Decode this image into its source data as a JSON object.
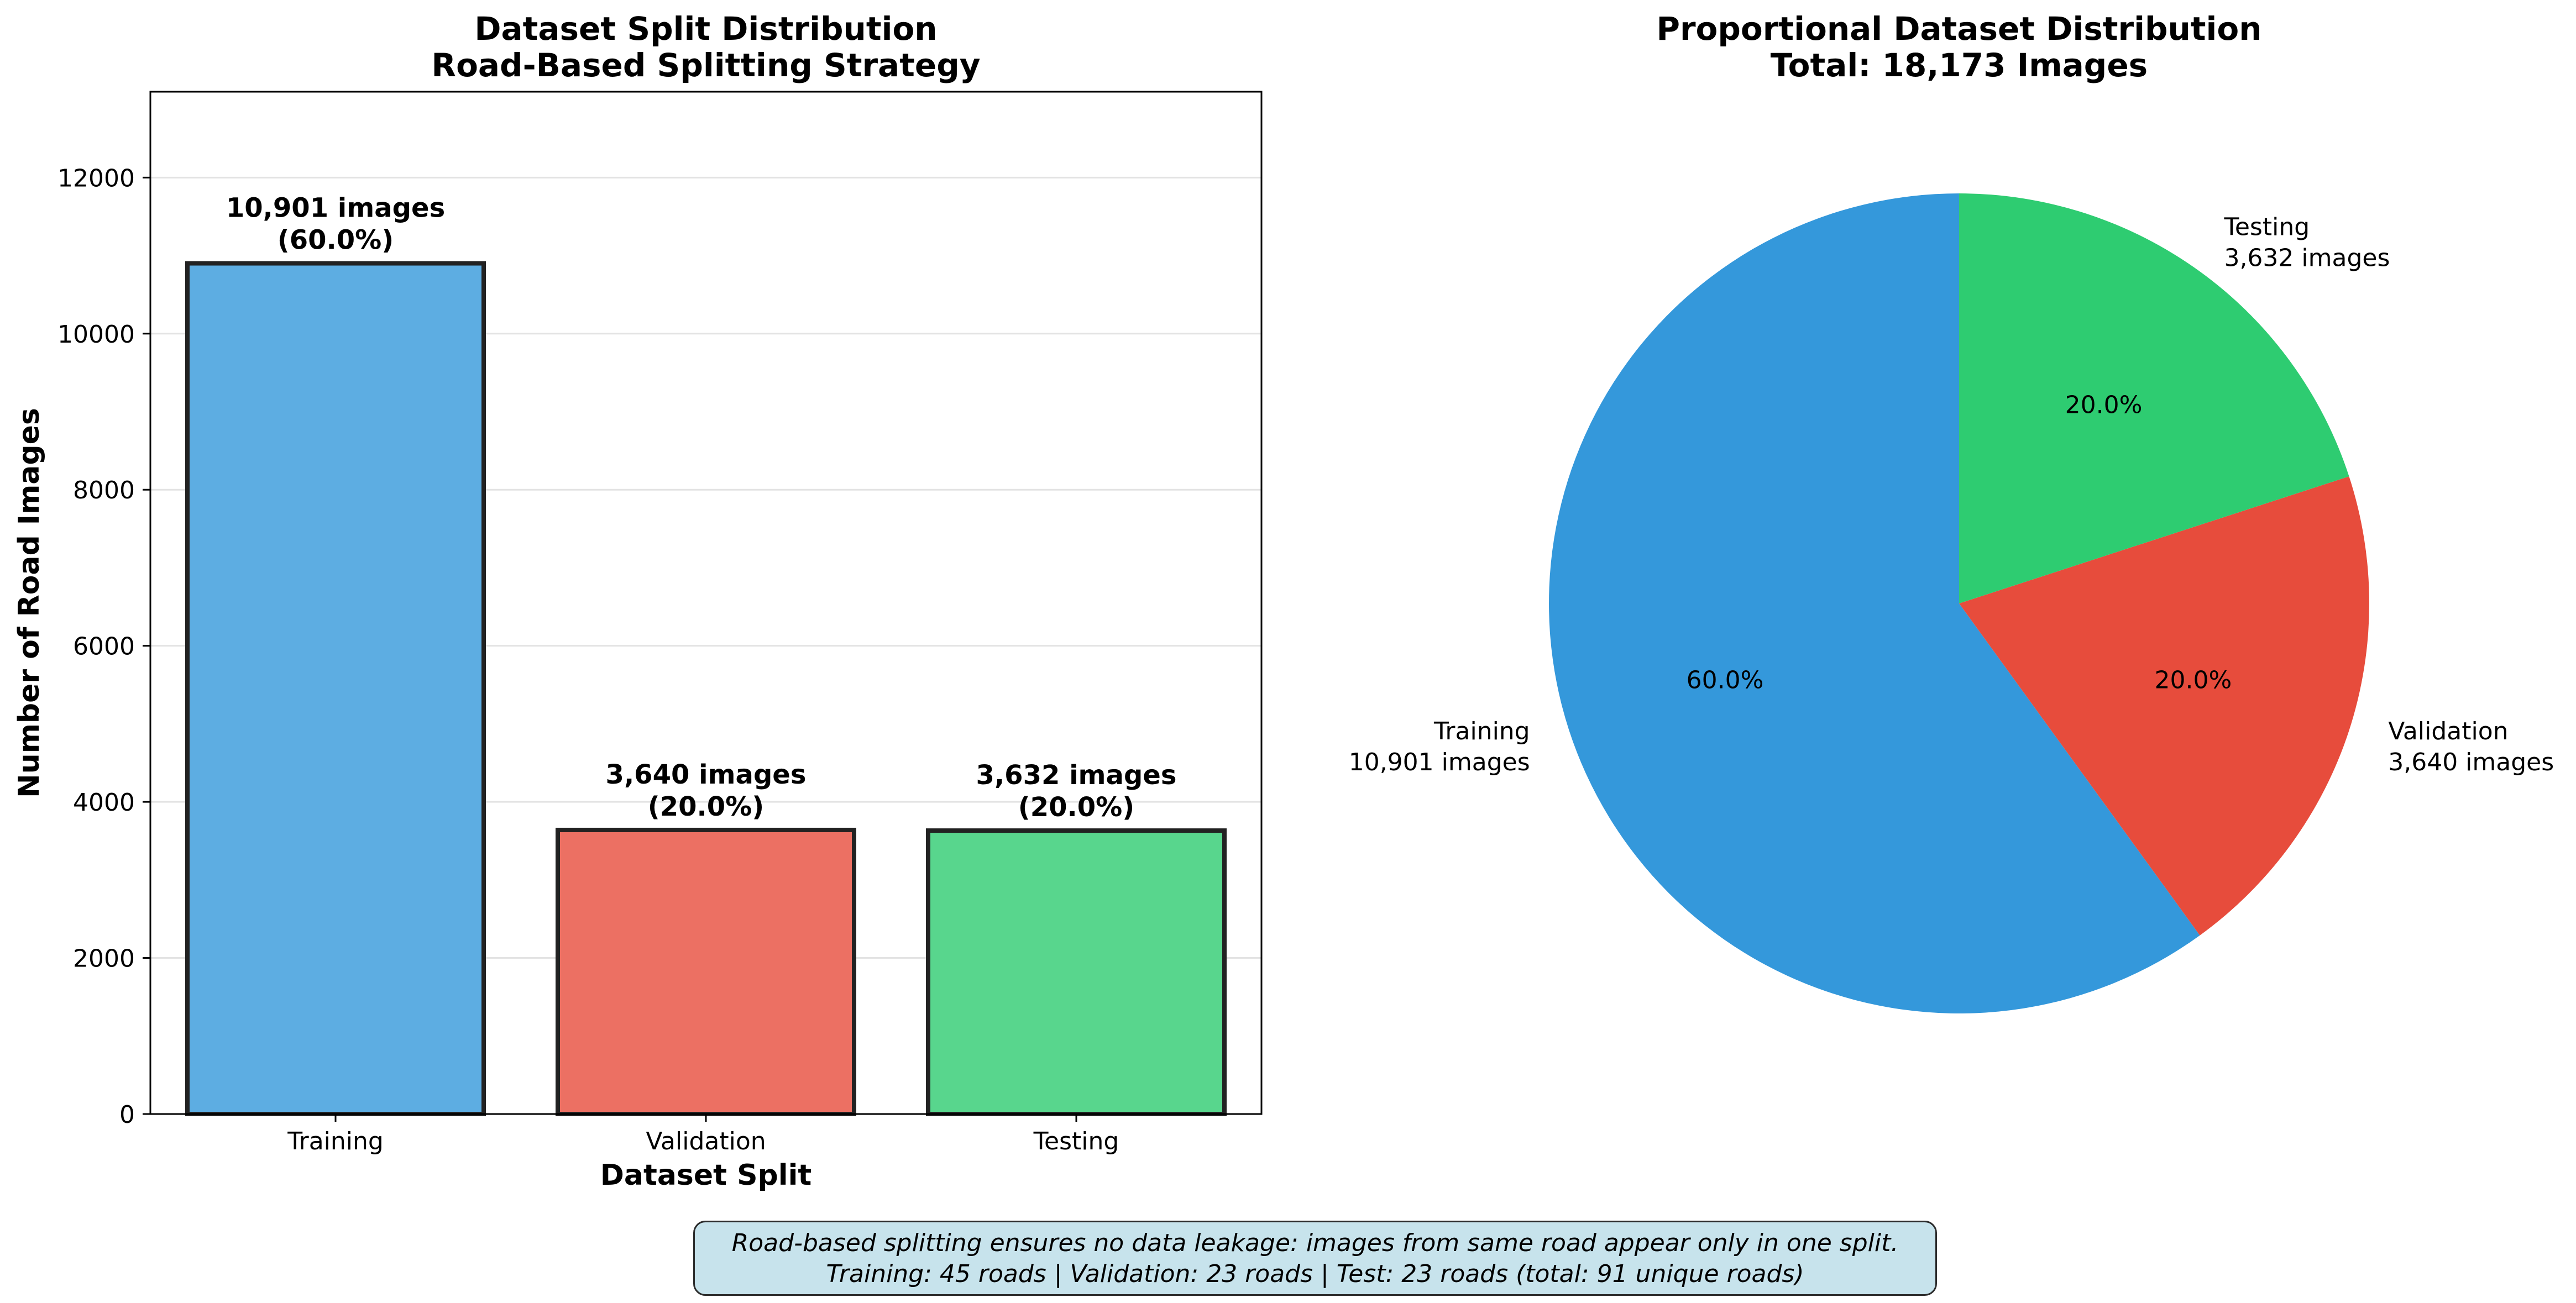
{
  "chart_data": [
    {
      "type": "bar",
      "title": [
        "Dataset Split Distribution",
        "Road-Based Splitting Strategy"
      ],
      "xlabel": "Dataset Split",
      "ylabel": "Number of Road Images",
      "categories": [
        "Training",
        "Validation",
        "Testing"
      ],
      "values": [
        10901,
        3640,
        3632
      ],
      "colors": [
        "#5dade2",
        "#ec7063",
        "#58d68d"
      ],
      "data_labels": [
        [
          "10,901 images",
          "(60.0%)"
        ],
        [
          "3,640 images",
          "(20.0%)"
        ],
        [
          "3,632 images",
          "(20.0%)"
        ]
      ],
      "ylim": [
        0,
        13100
      ],
      "yticks": [
        0,
        2000,
        4000,
        6000,
        8000,
        10000,
        12000
      ],
      "grid": true
    },
    {
      "type": "pie",
      "title": [
        "Proportional Dataset Distribution",
        "Total: 18,173 Images"
      ],
      "slices": [
        {
          "label": [
            "Training",
            "10,901 images"
          ],
          "value": 10901,
          "pct": "60.0%",
          "color": "#3498db"
        },
        {
          "label": [
            "Validation",
            "3,640 images"
          ],
          "value": 3640,
          "pct": "20.0%",
          "color": "#e74c3c"
        },
        {
          "label": [
            "Testing",
            "3,632 images"
          ],
          "value": 3632,
          "pct": "20.0%",
          "color": "#2ecc71"
        }
      ]
    }
  ],
  "footnote": {
    "line1": "Road-based splitting ensures no data leakage: images from same road appear only in one split.",
    "line2": "Training: 45 roads | Validation: 23 roads | Test: 23 roads (total: 91 unique roads)"
  }
}
